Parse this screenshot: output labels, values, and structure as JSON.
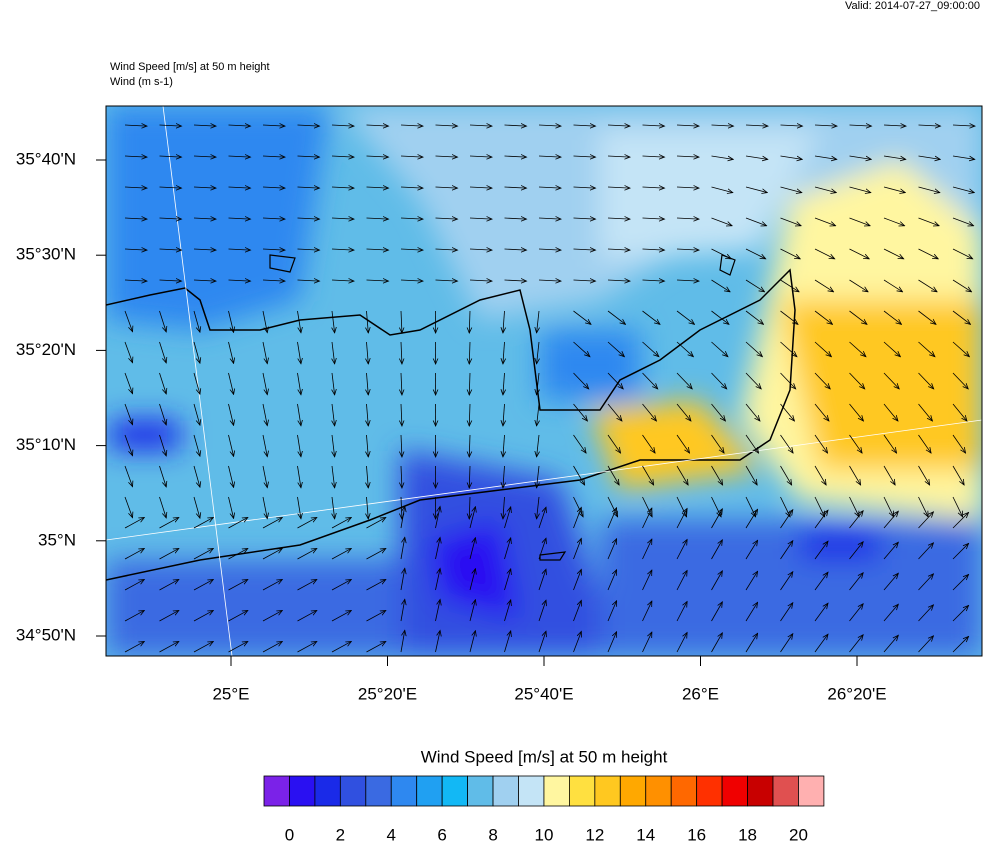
{
  "header": {
    "valid": "Valid: 2014-07-27_09:00:00",
    "field_title": "Wind Speed [m/s] at 50 m height",
    "vector_title": "Wind   (m s-1)"
  },
  "map": {
    "lat_labels": [
      "35°40'N",
      "35°30'N",
      "35°20'N",
      "35°10'N",
      "35°N",
      "34°50'N"
    ],
    "lon_labels": [
      "25°E",
      "25°20'E",
      "25°40'E",
      "26°E",
      "26°20'E"
    ]
  },
  "colorbar": {
    "title": "Wind Speed [m/s] at 50 m height",
    "labels": [
      0,
      2,
      4,
      6,
      8,
      10,
      12,
      14,
      16,
      18,
      20
    ],
    "colors": [
      "#7b22e8",
      "#2a10f2",
      "#1a2ae8",
      "#3050e0",
      "#3a6ae2",
      "#2e88f0",
      "#20a0f2",
      "#12b8f5",
      "#60bce8",
      "#a0d0f0",
      "#c4e4f6",
      "#fff6a0",
      "#ffe040",
      "#ffc820",
      "#ffa800",
      "#ff9000",
      "#ff6800",
      "#ff3000",
      "#f00000",
      "#c80000",
      "#e05050",
      "#ffb0b0"
    ]
  }
}
